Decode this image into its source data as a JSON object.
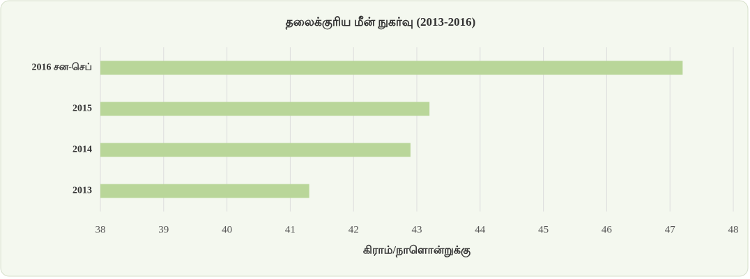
{
  "chart_data": {
    "type": "barh",
    "title": "தலைக்குரிய மீன் நுகர்வு (2013-2016)",
    "categories": [
      "2016 சன-செப்",
      "2015",
      "2014",
      "2013"
    ],
    "values": [
      47.2,
      43.2,
      42.9,
      41.3
    ],
    "color": "#b9d699",
    "xlabel": "கிராம்/நாளொன்றுக்கு",
    "xlim": [
      38,
      48
    ],
    "xticks": [
      38,
      39,
      40,
      41,
      42,
      43,
      44,
      45,
      46,
      47,
      48
    ],
    "grid": true
  }
}
